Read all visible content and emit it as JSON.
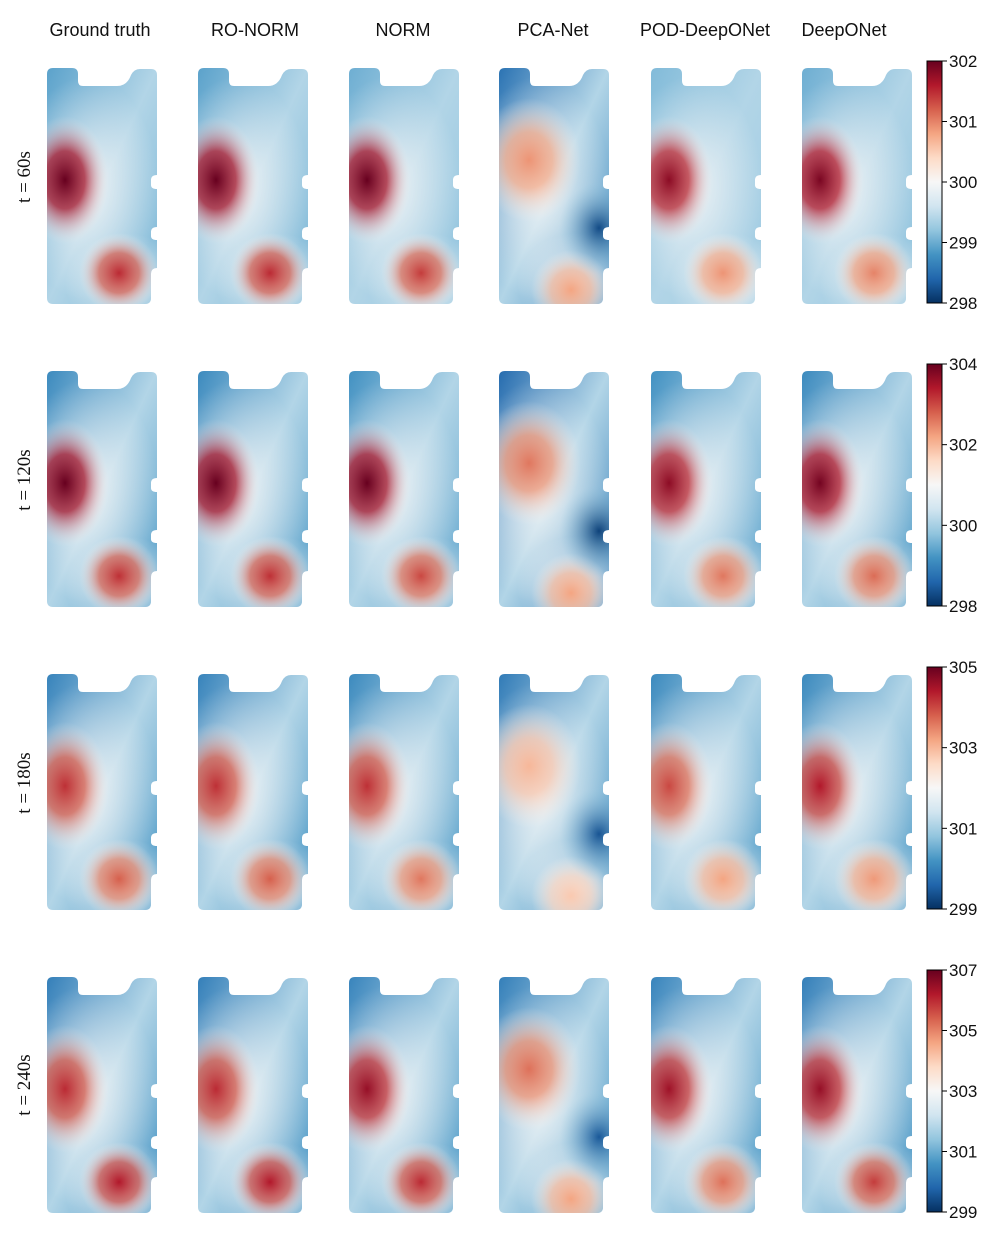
{
  "chart_data": {
    "type": "heatmap",
    "columns": [
      "Ground truth",
      "RO-NORM",
      "NORM",
      "PCA-Net",
      "POD-DeepONet",
      "DeepONet"
    ],
    "rows": [
      {
        "time": "t = 60s",
        "colorbar": {
          "range": [
            298,
            302
          ],
          "ticks": [
            298,
            299,
            300,
            301,
            302
          ]
        },
        "hotspots": [
          {
            "column": "Ground truth",
            "spot_a": 302,
            "spot_b": 301.5,
            "coldest": 298.6
          },
          {
            "column": "RO-NORM",
            "spot_a": 302,
            "spot_b": 301.5,
            "coldest": 298.6
          },
          {
            "column": "NORM",
            "spot_a": 302,
            "spot_b": 301.4,
            "coldest": 298.7
          },
          {
            "column": "PCA-Net",
            "spot_a": 300.9,
            "spot_b": 300.8,
            "coldest": 298.2
          },
          {
            "column": "POD-DeepONet",
            "spot_a": 301.8,
            "spot_b": 300.9,
            "coldest": 298.8
          },
          {
            "column": "DeepONet",
            "spot_a": 301.9,
            "spot_b": 301.0,
            "coldest": 298.7
          }
        ]
      },
      {
        "time": "t = 120s",
        "colorbar": {
          "range": [
            298,
            304
          ],
          "ticks": [
            298,
            300,
            302,
            304
          ]
        },
        "hotspots": [
          {
            "column": "Ground truth",
            "spot_a": 304,
            "spot_b": 303.2,
            "coldest": 298.6
          },
          {
            "column": "RO-NORM",
            "spot_a": 304,
            "spot_b": 303.2,
            "coldest": 298.6
          },
          {
            "column": "NORM",
            "spot_a": 304,
            "spot_b": 303.0,
            "coldest": 298.7
          },
          {
            "column": "PCA-Net",
            "spot_a": 302.6,
            "spot_b": 302.2,
            "coldest": 298.2
          },
          {
            "column": "POD-DeepONet",
            "spot_a": 303.7,
            "spot_b": 302.6,
            "coldest": 298.7
          },
          {
            "column": "DeepONet",
            "spot_a": 303.9,
            "spot_b": 302.7,
            "coldest": 298.6
          }
        ]
      },
      {
        "time": "t = 180s",
        "colorbar": {
          "range": [
            299,
            305
          ],
          "ticks": [
            299,
            301,
            303,
            305
          ]
        },
        "hotspots": [
          {
            "column": "Ground truth",
            "spot_a": 304.2,
            "spot_b": 303.8,
            "coldest": 299.5
          },
          {
            "column": "RO-NORM",
            "spot_a": 304.2,
            "spot_b": 303.8,
            "coldest": 299.5
          },
          {
            "column": "NORM",
            "spot_a": 304.2,
            "spot_b": 303.6,
            "coldest": 299.6
          },
          {
            "column": "PCA-Net",
            "spot_a": 303.0,
            "spot_b": 302.8,
            "coldest": 299.4
          },
          {
            "column": "POD-DeepONet",
            "spot_a": 304.0,
            "spot_b": 303.2,
            "coldest": 299.6
          },
          {
            "column": "DeepONet",
            "spot_a": 304.4,
            "spot_b": 303.3,
            "coldest": 299.6
          }
        ]
      },
      {
        "time": "t = 240s",
        "colorbar": {
          "range": [
            299,
            307
          ],
          "ticks": [
            299,
            301,
            303,
            305,
            307
          ]
        },
        "hotspots": [
          {
            "column": "Ground truth",
            "spot_a": 306.0,
            "spot_b": 306.2,
            "coldest": 299.6
          },
          {
            "column": "RO-NORM",
            "spot_a": 306.0,
            "spot_b": 306.2,
            "coldest": 299.6
          },
          {
            "column": "NORM",
            "spot_a": 306.5,
            "spot_b": 306.0,
            "coldest": 299.7
          },
          {
            "column": "PCA-Net",
            "spot_a": 305.2,
            "spot_b": 304.6,
            "coldest": 299.6
          },
          {
            "column": "POD-DeepONet",
            "spot_a": 306.4,
            "spot_b": 305.2,
            "coldest": 299.7
          },
          {
            "column": "DeepONet",
            "spot_a": 306.5,
            "spot_b": 305.8,
            "coldest": 299.6
          }
        ]
      }
    ],
    "colormap": {
      "name": "RdBu_r",
      "stops": [
        "#053061",
        "#2166ac",
        "#4393c3",
        "#92c5de",
        "#d1e5f0",
        "#f7f7f7",
        "#fddbc7",
        "#f4a582",
        "#d6604d",
        "#b2182b",
        "#67001f"
      ]
    }
  }
}
